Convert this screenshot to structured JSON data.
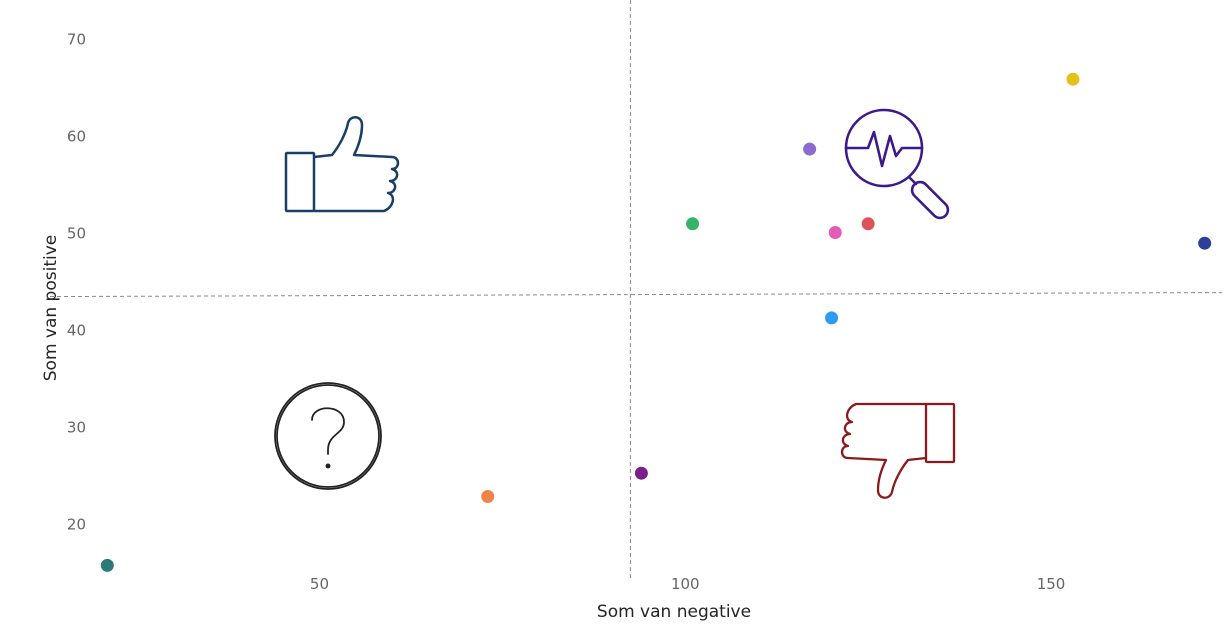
{
  "chart_data": {
    "type": "scatter",
    "title": "",
    "xlabel": "Som van negative",
    "ylabel": "Som van positive",
    "xlim": [
      20,
      172
    ],
    "ylim": [
      14.5,
      72
    ],
    "x_ticks": [
      50,
      100,
      150
    ],
    "y_ticks": [
      20,
      30,
      40,
      50,
      60,
      70
    ],
    "grid": false,
    "reference_lines": {
      "x": 92.5,
      "y": 43.5
    },
    "quadrant_icons": [
      "thumbs-up-icon",
      "analytics-magnifier-icon",
      "question-mark-icon",
      "thumbs-down-icon"
    ],
    "icon_colors": {
      "thumbs-up-icon": "#1a3f63",
      "analytics-magnifier-icon": "#3d1a8c",
      "question-mark-icon": "#222222",
      "thumbs-down-icon": "#8b1a1a"
    },
    "points": [
      {
        "x": 21,
        "y": 15.8,
        "color": "#2b7a78"
      },
      {
        "x": 73,
        "y": 22.9,
        "color": "#f0834b"
      },
      {
        "x": 94,
        "y": 25.3,
        "color": "#7b1f8a"
      },
      {
        "x": 101,
        "y": 51.0,
        "color": "#34b36a"
      },
      {
        "x": 117,
        "y": 58.7,
        "color": "#8c6bd0"
      },
      {
        "x": 120.5,
        "y": 50.1,
        "color": "#e45cb6"
      },
      {
        "x": 120,
        "y": 41.3,
        "color": "#2d9bf0"
      },
      {
        "x": 125,
        "y": 51.0,
        "color": "#e0525b"
      },
      {
        "x": 153,
        "y": 65.9,
        "color": "#e6c01a"
      },
      {
        "x": 171,
        "y": 49.0,
        "color": "#2c3e9a"
      }
    ]
  }
}
